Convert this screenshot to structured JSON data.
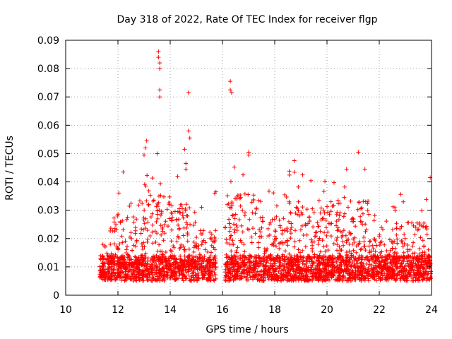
{
  "chart_data": {
    "type": "scatter",
    "title": "Day 318 of 2022, Rate Of TEC Index for receiver flgp",
    "xlabel": "GPS time / hours",
    "ylabel": "ROTI / TECUs",
    "xlim": [
      10,
      24
    ],
    "ylim": [
      0,
      0.09
    ],
    "grid": true,
    "marker": "+",
    "series_color": "#ff0000",
    "xticks": [
      {
        "value": 10,
        "label": "10"
      },
      {
        "value": 12,
        "label": "12"
      },
      {
        "value": 14,
        "label": "14"
      },
      {
        "value": 16,
        "label": "16"
      },
      {
        "value": 18,
        "label": "18"
      },
      {
        "value": 20,
        "label": "20"
      },
      {
        "value": 22,
        "label": "22"
      },
      {
        "value": 24,
        "label": "24"
      }
    ],
    "yticks": [
      {
        "value": 0,
        "label": "0"
      },
      {
        "value": 0.01,
        "label": "0.01"
      },
      {
        "value": 0.02,
        "label": "0.02"
      },
      {
        "value": 0.03,
        "label": "0.03"
      },
      {
        "value": 0.04,
        "label": "0.04"
      },
      {
        "value": 0.05,
        "label": "0.05"
      },
      {
        "value": 0.06,
        "label": "0.06"
      },
      {
        "value": 0.07,
        "label": "0.07"
      },
      {
        "value": 0.08,
        "label": "0.08"
      },
      {
        "value": 0.09,
        "label": "0.09"
      }
    ],
    "data_segments": [
      {
        "x_start": 11.3,
        "x_end": 15.75
      },
      {
        "x_start": 16.1,
        "x_end": 24.0
      }
    ],
    "notable_points": [
      {
        "x": 13.55,
        "y": 0.086
      },
      {
        "x": 13.55,
        "y": 0.084
      },
      {
        "x": 13.6,
        "y": 0.082
      },
      {
        "x": 13.6,
        "y": 0.08
      },
      {
        "x": 13.6,
        "y": 0.0725
      },
      {
        "x": 13.6,
        "y": 0.07
      },
      {
        "x": 14.7,
        "y": 0.0715
      },
      {
        "x": 13.1,
        "y": 0.0545
      },
      {
        "x": 13.05,
        "y": 0.052
      },
      {
        "x": 13.0,
        "y": 0.0495
      },
      {
        "x": 13.5,
        "y": 0.05
      },
      {
        "x": 14.7,
        "y": 0.058
      },
      {
        "x": 14.75,
        "y": 0.0555
      },
      {
        "x": 14.55,
        "y": 0.0515
      },
      {
        "x": 14.6,
        "y": 0.0465
      },
      {
        "x": 14.6,
        "y": 0.0445
      },
      {
        "x": 16.3,
        "y": 0.0755
      },
      {
        "x": 16.3,
        "y": 0.0725
      },
      {
        "x": 16.35,
        "y": 0.0715
      },
      {
        "x": 17.0,
        "y": 0.0505
      },
      {
        "x": 17.0,
        "y": 0.0495
      },
      {
        "x": 21.2,
        "y": 0.0505
      },
      {
        "x": 18.75,
        "y": 0.0475
      },
      {
        "x": 12.2,
        "y": 0.0435
      },
      {
        "x": 20.75,
        "y": 0.0445
      },
      {
        "x": 21.45,
        "y": 0.0445
      },
      {
        "x": 23.95,
        "y": 0.0415
      },
      {
        "x": 15.75,
        "y": 0.0365
      },
      {
        "x": 15.7,
        "y": 0.036
      }
    ]
  }
}
